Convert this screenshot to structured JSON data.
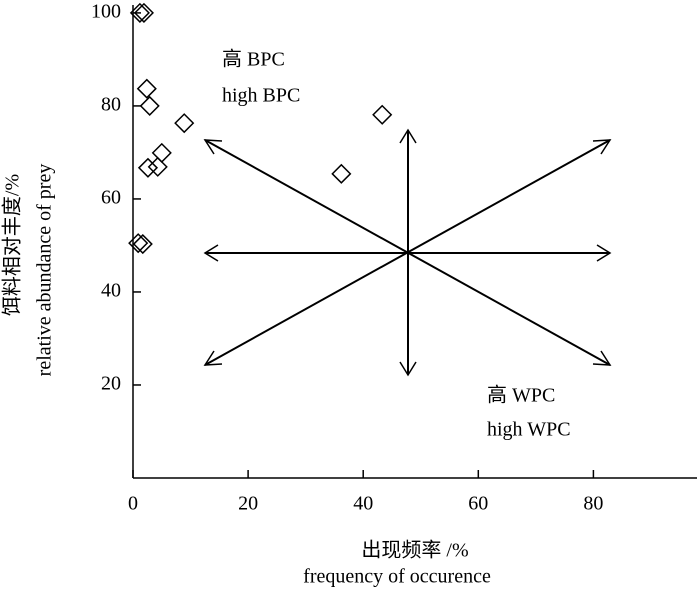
{
  "chart_data": {
    "type": "scatter",
    "x_label": [
      "出现频率 /%",
      "frequency of occurence"
    ],
    "y_label": [
      "饵料相对丰度/%",
      "relative abundance of prey"
    ],
    "annotations": [
      "高 BPC",
      "high BPC",
      "高 WPC",
      "high WPC"
    ],
    "x": [
      1.2,
      1.9,
      2.4,
      2.9,
      8.9,
      5.0,
      4.3,
      2.6,
      36.2,
      43.3,
      0.9,
      1.7
    ],
    "values": [
      100,
      100,
      83.7,
      80,
      76.3,
      69.9,
      66.9,
      66.7,
      65.4,
      78.1,
      50.5,
      50.3
    ],
    "color": "#000000",
    "marker": "diamond",
    "xlim": [
      0,
      98
    ],
    "xticks": [
      0,
      20,
      40,
      60,
      80
    ],
    "ylim": [
      0,
      101.7
    ],
    "yticks": [
      20,
      40,
      60,
      80,
      100
    ]
  }
}
